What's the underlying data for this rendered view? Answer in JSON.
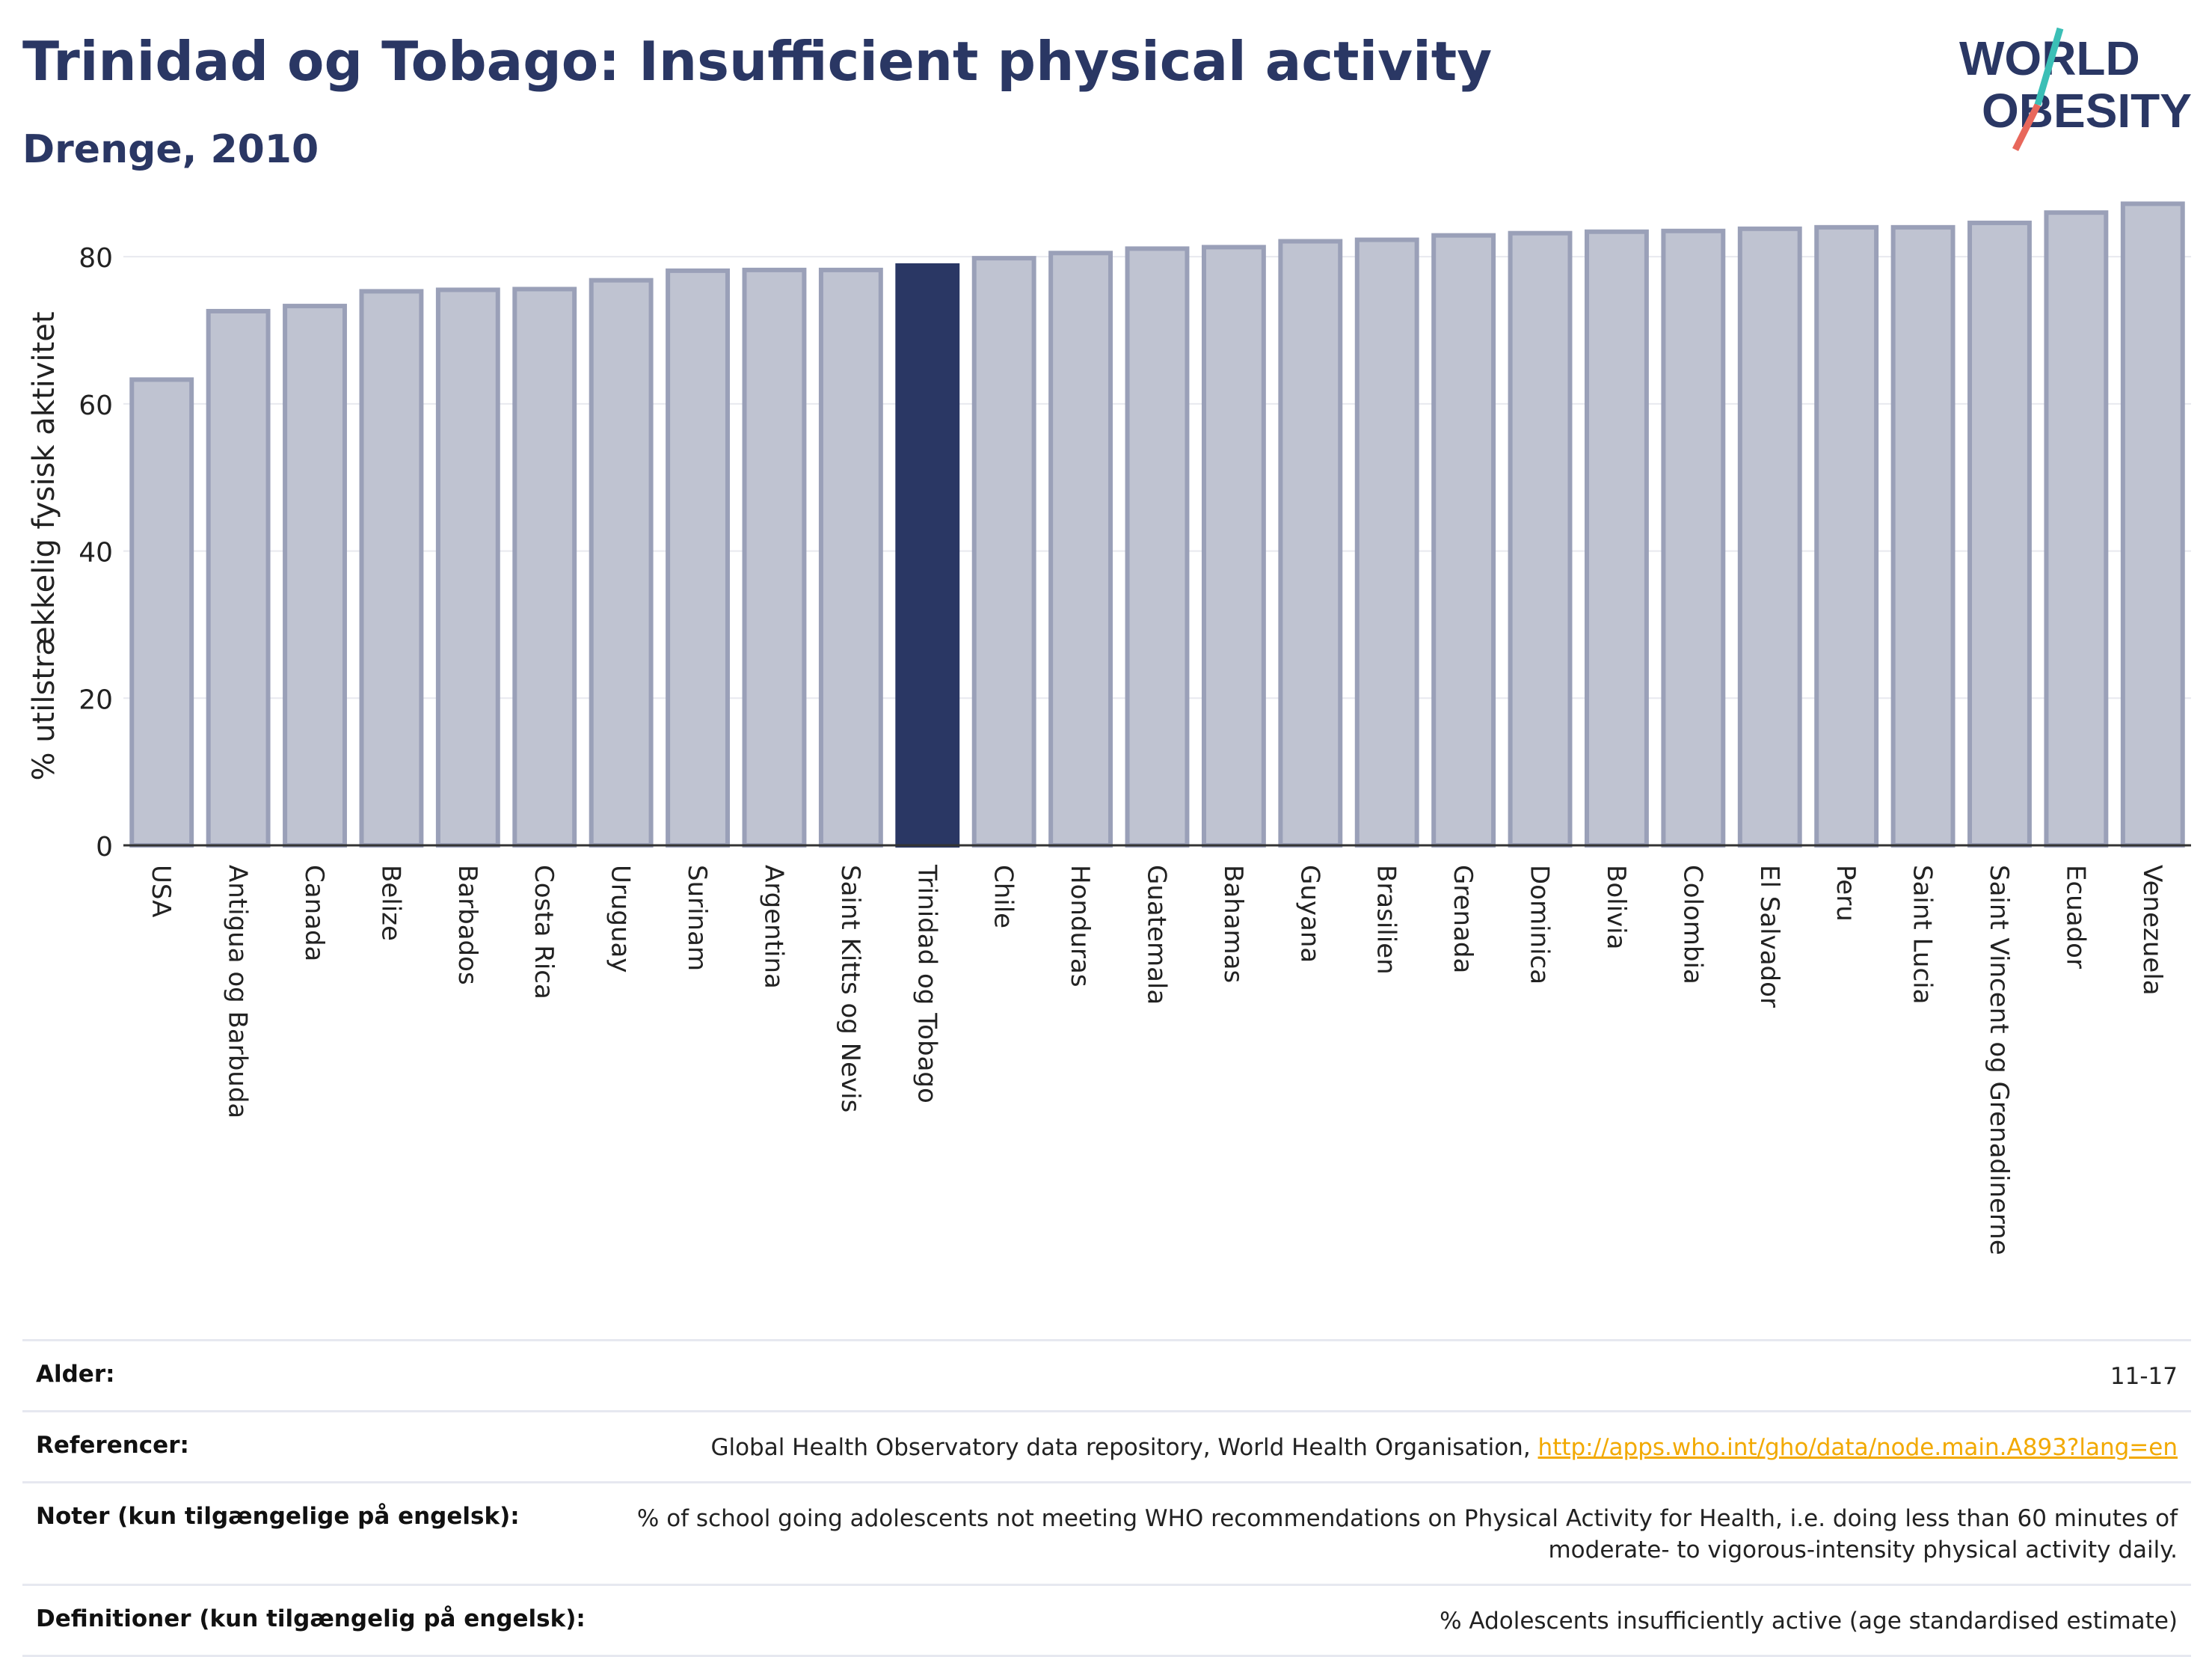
{
  "header": {
    "title": "Trinidad og Tobago: Insufficient physical activity",
    "subtitle": "Drenge, 2010"
  },
  "logo": {
    "line1": "WORLD",
    "line2": "OBESITY"
  },
  "chart_data": {
    "type": "bar",
    "ylabel": "% utilstrækkelig fysisk aktivitet",
    "xlabel": "",
    "ylim": [
      0,
      90
    ],
    "yticks": [
      0,
      20,
      40,
      60,
      80
    ],
    "grid": true,
    "highlight": "Trinidad og Tobago",
    "colors": {
      "bar": "#bfc3d1",
      "bar_border": "#9aa0b8",
      "highlight": "#2a3764"
    },
    "categories": [
      "USA",
      "Antigua og Barbuda",
      "Canada",
      "Belize",
      "Barbados",
      "Costa Rica",
      "Uruguay",
      "Surinam",
      "Argentina",
      "Saint Kitts og Nevis",
      "Trinidad og Tobago",
      "Chile",
      "Honduras",
      "Guatemala",
      "Bahamas",
      "Guyana",
      "Brasilien",
      "Grenada",
      "Dominica",
      "Bolivia",
      "Colombia",
      "El Salvador",
      "Peru",
      "Saint Lucia",
      "Saint Vincent og Grenadinerne",
      "Ecuador",
      "Venezuela"
    ],
    "values": [
      63.3,
      72.6,
      73.3,
      75.3,
      75.5,
      75.6,
      76.8,
      78.1,
      78.2,
      78.2,
      78.8,
      79.8,
      80.5,
      81.1,
      81.3,
      82.1,
      82.3,
      82.9,
      83.2,
      83.4,
      83.5,
      83.8,
      84.0,
      84.0,
      84.6,
      86.0,
      87.2
    ]
  },
  "meta": [
    {
      "label": "Alder:",
      "value": "11-17"
    },
    {
      "label": "Referencer:",
      "value": "Global Health Observatory data repository, World Health Organisation, ",
      "link": "http://apps.who.int/gho/data/node.main.A893?lang=en"
    },
    {
      "label": "Noter (kun tilgængelige på engelsk):",
      "value": "% of school going adolescents not meeting WHO recommendations on Physical Activity for Health, i.e. doing less than 60 minutes of moderate- to vigorous-intensity physical activity daily."
    },
    {
      "label": "Definitioner (kun tilgængelig på engelsk):",
      "value": "% Adolescents insufficiently active (age standardised estimate)"
    }
  ]
}
